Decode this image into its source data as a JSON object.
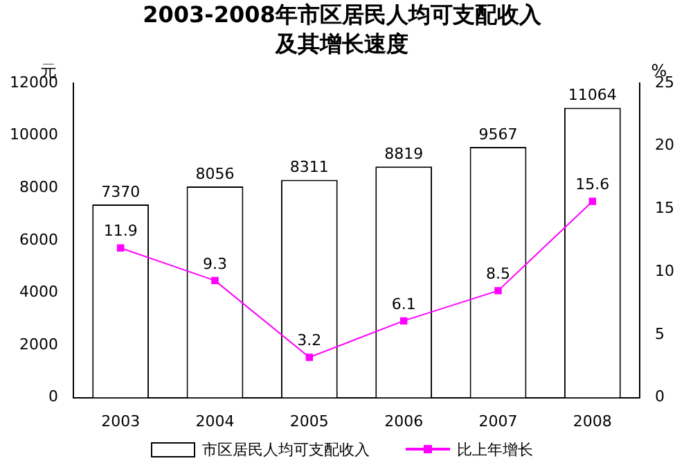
{
  "chart_data": {
    "type": "bar",
    "title": "2003-2008年市区居民人均可支配收入及其增长速度",
    "ylabel": "元",
    "y2label": "%",
    "categories": [
      "2003",
      "2004",
      "2005",
      "2006",
      "2007",
      "2008"
    ],
    "series": [
      {
        "name": "市区居民人均可支配收入",
        "color": "#ffffff",
        "values": [
          7370,
          8056,
          8311,
          8819,
          9567,
          11064
        ]
      },
      {
        "name": "比上年增长",
        "type": "line",
        "axis": "y2",
        "color": "#ff00ff",
        "values": [
          11.9,
          9.3,
          3.2,
          6.1,
          8.5,
          15.6
        ]
      }
    ],
    "ylim": [
      0,
      12000
    ],
    "yticks": [
      0,
      2000,
      4000,
      6000,
      8000,
      10000,
      12000
    ],
    "y2lim": [
      0,
      25
    ],
    "y2ticks": [
      0,
      5,
      10,
      15,
      20,
      25
    ],
    "data_labels": true,
    "legend": "bottom",
    "marker": "square",
    "line_style": "solid",
    "grid": false
  }
}
